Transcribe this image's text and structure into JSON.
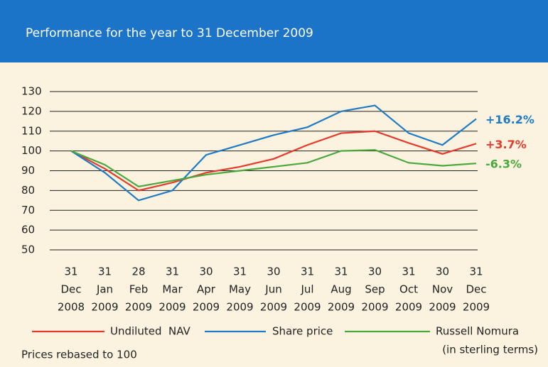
{
  "chart_data": {
    "type": "line",
    "title": "Performance for the year to 31 December 2009",
    "categories": [
      [
        "31",
        "Dec",
        "2008"
      ],
      [
        "31",
        "Jan",
        "2009"
      ],
      [
        "28",
        "Feb",
        "2009"
      ],
      [
        "31",
        "Mar",
        "2009"
      ],
      [
        "30",
        "Apr",
        "2009"
      ],
      [
        "31",
        "May",
        "2009"
      ],
      [
        "30",
        "Jun",
        "2009"
      ],
      [
        "31",
        "Jul",
        "2009"
      ],
      [
        "31",
        "Aug",
        "2009"
      ],
      [
        "30",
        "Sep",
        "2009"
      ],
      [
        "31",
        "Oct",
        "2009"
      ],
      [
        "30",
        "Nov",
        "2009"
      ],
      [
        "31",
        "Dec",
        "2009"
      ]
    ],
    "series": [
      {
        "name": "Undiluted  NAV",
        "color": "#e53a2c",
        "values": [
          100,
          91,
          80,
          84,
          89,
          92,
          96,
          103,
          109,
          110,
          104,
          98.5,
          103.7
        ],
        "end_label": "+3.7%"
      },
      {
        "name": "Share price",
        "color": "#1f7bc4",
        "values": [
          100,
          89,
          75,
          80,
          98,
          103,
          108,
          112,
          120,
          123,
          109,
          103,
          116.2
        ],
        "end_label": "+16.2%"
      },
      {
        "name": "Russell Nomura",
        "name_note": "(in sterling terms)",
        "color": "#4aa83d",
        "values": [
          100,
          93,
          82,
          85,
          88,
          90,
          92,
          94,
          100,
          100.5,
          94,
          92.5,
          93.7
        ],
        "end_label": "-6.3%"
      }
    ],
    "ylim": [
      50,
      130
    ],
    "yticks": [
      50,
      60,
      70,
      80,
      90,
      100,
      110,
      120,
      130
    ],
    "grid": true,
    "footnote": "Prices rebased to 100"
  }
}
